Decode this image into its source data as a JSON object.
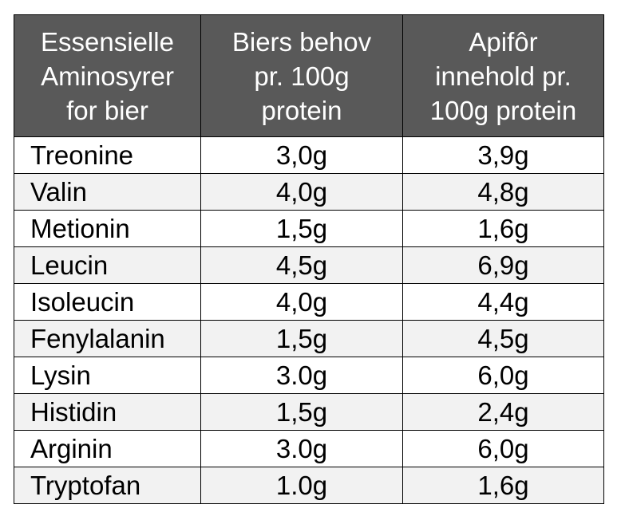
{
  "table": {
    "headers": [
      [
        "Essensielle",
        "Aminosyrer",
        "for bier"
      ],
      [
        "Biers behov",
        "pr. 100g",
        "protein"
      ],
      [
        "Apifôr",
        "innehold pr.",
        "100g protein"
      ]
    ],
    "rows": [
      {
        "name": "Treonine",
        "need": "3,0g",
        "content": "3,9g"
      },
      {
        "name": "Valin",
        "need": "4,0g",
        "content": "4,8g"
      },
      {
        "name": "Metionin",
        "need": "1,5g",
        "content": "1,6g"
      },
      {
        "name": "Leucin",
        "need": "4,5g",
        "content": "6,9g"
      },
      {
        "name": "Isoleucin",
        "need": "4,0g",
        "content": "4,4g"
      },
      {
        "name": "Fenylalanin",
        "need": "1,5g",
        "content": "4,5g"
      },
      {
        "name": "Lysin",
        "need": "3.0g",
        "content": "6,0g"
      },
      {
        "name": "Histidin",
        "need": "1,5g",
        "content": "2,4g"
      },
      {
        "name": "Arginin",
        "need": "3.0g",
        "content": "6,0g"
      },
      {
        "name": "Tryptofan",
        "need": "1.0g",
        "content": "1,6g"
      }
    ]
  }
}
